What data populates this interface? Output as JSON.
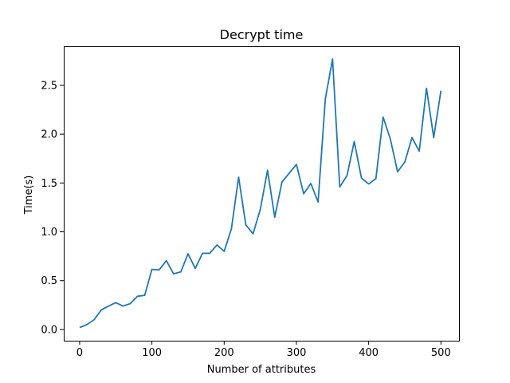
{
  "chart_data": {
    "type": "line",
    "title": "Decrypt time",
    "xlabel": "Number of attributes",
    "ylabel": "Time(s)",
    "xlim": [
      -22,
      525
    ],
    "ylim": [
      -0.115,
      2.9
    ],
    "xticks": [
      0,
      100,
      200,
      300,
      400,
      500
    ],
    "yticks": [
      0.0,
      0.5,
      1.0,
      1.5,
      2.0,
      2.5
    ],
    "xtick_labels": [
      "0",
      "100",
      "200",
      "300",
      "400",
      "500"
    ],
    "ytick_labels": [
      "0.0",
      "0.5",
      "1.0",
      "1.5",
      "2.0",
      "2.5"
    ],
    "grid": false,
    "series": [
      {
        "color": "#1f77b4",
        "x": [
          0,
          10,
          20,
          30,
          40,
          50,
          60,
          70,
          80,
          90,
          100,
          110,
          120,
          130,
          140,
          150,
          160,
          170,
          180,
          190,
          200,
          210,
          220,
          230,
          240,
          250,
          260,
          270,
          280,
          290,
          300,
          310,
          320,
          330,
          340,
          350,
          360,
          370,
          380,
          390,
          400,
          410,
          420,
          430,
          440,
          450,
          460,
          470,
          480,
          490,
          500
        ],
        "values": [
          0.02,
          0.05,
          0.1,
          0.2,
          0.24,
          0.275,
          0.24,
          0.265,
          0.34,
          0.35,
          0.615,
          0.61,
          0.705,
          0.57,
          0.59,
          0.775,
          0.625,
          0.78,
          0.78,
          0.865,
          0.8,
          1.03,
          1.56,
          1.07,
          0.98,
          1.23,
          1.63,
          1.15,
          1.51,
          1.6,
          1.69,
          1.39,
          1.495,
          1.305,
          2.36,
          2.77,
          1.46,
          1.575,
          1.925,
          1.55,
          1.49,
          1.545,
          2.175,
          1.95,
          1.615,
          1.715,
          1.965,
          1.825,
          2.47,
          1.965,
          2.445
        ]
      }
    ]
  }
}
